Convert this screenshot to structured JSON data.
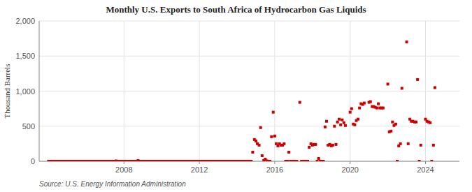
{
  "chart_data": {
    "type": "scatter",
    "title": "Monthly U.S. Exports to South Africa of Hydrocarbon Gas Liquids",
    "y_label": "Thousand Barrels",
    "source": "Source: U.S. Energy Information Administration",
    "color": "#cc0000",
    "marker": "square",
    "grid": true,
    "xlim": [
      2003.5,
      2025.8
    ],
    "xticks": [
      2008,
      2012,
      2016,
      2020,
      2024
    ],
    "ylim": [
      0,
      2000
    ],
    "yticks": [
      0,
      500,
      {
        "value": 1000,
        "label": "1,000"
      },
      {
        "value": 1500,
        "label": "1,500"
      },
      {
        "value": 2000,
        "label": "2,000"
      }
    ],
    "x": [
      2004.0,
      2004.08,
      2004.17,
      2004.25,
      2004.33,
      2004.42,
      2004.5,
      2004.58,
      2004.67,
      2004.75,
      2004.83,
      2004.92,
      2005.0,
      2005.08,
      2005.17,
      2005.25,
      2005.33,
      2005.42,
      2005.5,
      2005.58,
      2005.67,
      2005.75,
      2005.83,
      2005.92,
      2006.0,
      2006.08,
      2006.17,
      2006.25,
      2006.33,
      2006.42,
      2006.5,
      2006.58,
      2006.67,
      2006.75,
      2006.83,
      2006.92,
      2007.0,
      2007.08,
      2007.17,
      2007.25,
      2007.33,
      2007.42,
      2007.5,
      2007.58,
      2007.67,
      2007.75,
      2007.83,
      2007.92,
      2008.0,
      2008.08,
      2008.17,
      2008.25,
      2008.33,
      2008.42,
      2008.5,
      2008.58,
      2008.67,
      2008.75,
      2008.83,
      2008.92,
      2009.0,
      2009.08,
      2009.17,
      2009.25,
      2009.33,
      2009.42,
      2009.5,
      2009.58,
      2009.67,
      2009.75,
      2009.83,
      2009.92,
      2010.0,
      2010.08,
      2010.17,
      2010.25,
      2010.33,
      2010.42,
      2010.5,
      2010.58,
      2010.67,
      2010.75,
      2010.83,
      2010.92,
      2011.0,
      2011.08,
      2011.17,
      2011.25,
      2011.33,
      2011.42,
      2011.5,
      2011.58,
      2011.67,
      2011.75,
      2011.83,
      2011.92,
      2012.0,
      2012.08,
      2012.17,
      2012.25,
      2012.33,
      2012.42,
      2012.5,
      2012.58,
      2012.67,
      2012.75,
      2012.83,
      2012.92,
      2013.0,
      2013.08,
      2013.17,
      2013.25,
      2013.33,
      2013.42,
      2013.5,
      2013.58,
      2013.67,
      2013.75,
      2013.83,
      2013.92,
      2014.0,
      2014.08,
      2014.17,
      2014.25,
      2014.33,
      2014.42,
      2014.5,
      2014.58,
      2014.67,
      2014.75,
      2014.83,
      2014.92,
      2015.0,
      2015.08,
      2015.17,
      2015.25,
      2015.33,
      2015.42,
      2015.5,
      2015.58,
      2015.67,
      2015.75,
      2015.83,
      2015.92,
      2016.0,
      2016.08,
      2016.17,
      2016.25,
      2016.33,
      2016.42,
      2016.5,
      2016.58,
      2016.67,
      2016.75,
      2016.83,
      2016.92,
      2017.0,
      2017.08,
      2017.17,
      2017.33,
      2017.42,
      2017.5,
      2017.58,
      2017.67,
      2017.75,
      2017.83,
      2017.92,
      2018.0,
      2018.08,
      2018.17,
      2018.25,
      2018.33,
      2018.42,
      2018.5,
      2018.58,
      2018.67,
      2018.75,
      2018.83,
      2018.92,
      2019.0,
      2019.08,
      2019.17,
      2019.25,
      2019.33,
      2019.42,
      2019.5,
      2019.58,
      2019.67,
      2019.75,
      2020.0,
      2020.08,
      2020.17,
      2020.25,
      2020.33,
      2020.42,
      2020.5,
      2020.58,
      2020.67,
      2020.75,
      2021.0,
      2021.08,
      2021.17,
      2021.25,
      2021.33,
      2021.42,
      2021.5,
      2021.58,
      2021.67,
      2021.75,
      2022.0,
      2022.08,
      2022.17,
      2022.25,
      2022.33,
      2022.42,
      2022.5,
      2022.58,
      2022.67,
      2022.75,
      2023.0,
      2023.08,
      2023.17,
      2023.25,
      2023.33,
      2023.42,
      2023.5,
      2023.58,
      2023.67,
      2023.75,
      2024.0,
      2024.08,
      2024.17,
      2024.25,
      2024.33,
      2024.42,
      2024.5
    ],
    "values": [
      0,
      0,
      0,
      0,
      0,
      0,
      0,
      0,
      0,
      0,
      0,
      0,
      0,
      0,
      0,
      0,
      0,
      0,
      0,
      0,
      0,
      0,
      0,
      0,
      0,
      0,
      0,
      0,
      0,
      0,
      0,
      0,
      0,
      0,
      0,
      0,
      0,
      0,
      0,
      0,
      0,
      0,
      0,
      5,
      0,
      0,
      0,
      0,
      0,
      0,
      0,
      0,
      0,
      0,
      0,
      0,
      0,
      10,
      0,
      0,
      0,
      0,
      0,
      0,
      0,
      0,
      0,
      0,
      0,
      0,
      0,
      0,
      0,
      0,
      0,
      0,
      0,
      0,
      0,
      0,
      0,
      0,
      0,
      0,
      0,
      0,
      0,
      0,
      0,
      0,
      0,
      0,
      0,
      0,
      0,
      0,
      0,
      0,
      0,
      0,
      0,
      0,
      0,
      0,
      0,
      0,
      0,
      0,
      0,
      0,
      0,
      0,
      0,
      0,
      0,
      0,
      0,
      0,
      0,
      0,
      0,
      0,
      0,
      0,
      0,
      0,
      0,
      0,
      0,
      0,
      130,
      310,
      290,
      250,
      230,
      480,
      80,
      10,
      30,
      5,
      0,
      0,
      350,
      700,
      360,
      250,
      220,
      250,
      230,
      230,
      250,
      0,
      0,
      130,
      0,
      0,
      0,
      0,
      0,
      840,
      0,
      0,
      0,
      0,
      0,
      200,
      250,
      230,
      240,
      240,
      0,
      40,
      0,
      0,
      0,
      490,
      570,
      230,
      240,
      220,
      230,
      500,
      240,
      560,
      600,
      520,
      590,
      550,
      510,
      700,
      750,
      530,
      520,
      580,
      600,
      760,
      820,
      810,
      830,
      840,
      850,
      780,
      780,
      770,
      760,
      820,
      760,
      760,
      760,
      1100,
      420,
      430,
      560,
      510,
      530,
      0,
      220,
      250,
      1040,
      1700,
      250,
      600,
      570,
      570,
      560,
      560,
      1165,
      0,
      230,
      600,
      570,
      560,
      550,
      0,
      230,
      1050
    ]
  }
}
